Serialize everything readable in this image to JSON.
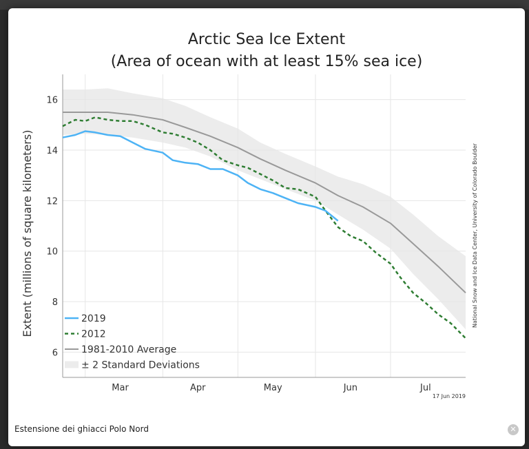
{
  "caption": "Estensione dei ghiacci Polo Nord",
  "close_icon_glyph": "✕",
  "chart_data": {
    "type": "line",
    "title": "Arctic Sea Ice Extent",
    "subtitle": "(Area of ocean with at least 15% sea ice)",
    "ylabel": "Extent (millions of square kilometers)",
    "ylim": [
      5,
      17
    ],
    "yticks": [
      6,
      8,
      10,
      12,
      14,
      16
    ],
    "xlim": [
      "Feb 20",
      "Jul 31"
    ],
    "x_tick_labels": [
      "Mar",
      "Apr",
      "May",
      "Jun",
      "Jul"
    ],
    "grid": true,
    "legend_position": "bottom-left",
    "credit": "National Snow and Ice Data Center, University of Colorado Boulder",
    "date_stamp": "17 Jun 2019",
    "colors": {
      "2019": "#4db3f5",
      "2012": "#2e7d32",
      "average": "#999999",
      "band": "#ececec"
    },
    "series": [
      {
        "name": "2019",
        "x": [
          "Feb 20",
          "Feb 25",
          "Mar 01",
          "Mar 05",
          "Mar 10",
          "Mar 15",
          "Mar 20",
          "Mar 25",
          "Apr 01",
          "Apr 05",
          "Apr 10",
          "Apr 15",
          "Apr 20",
          "Apr 25",
          "May 01",
          "May 05",
          "May 10",
          "May 15",
          "May 20",
          "May 25",
          "Jun 01",
          "Jun 05",
          "Jun 10"
        ],
        "values": [
          14.5,
          14.6,
          14.75,
          14.7,
          14.6,
          14.55,
          14.3,
          14.05,
          13.9,
          13.6,
          13.5,
          13.45,
          13.25,
          13.25,
          13.0,
          12.7,
          12.45,
          12.3,
          12.1,
          11.9,
          11.75,
          11.6,
          11.2
        ]
      },
      {
        "name": "2012",
        "x": [
          "Feb 20",
          "Feb 25",
          "Mar 01",
          "Mar 05",
          "Mar 10",
          "Mar 15",
          "Mar 20",
          "Mar 25",
          "Apr 01",
          "Apr 05",
          "Apr 10",
          "Apr 15",
          "Apr 20",
          "Apr 25",
          "May 01",
          "May 05",
          "May 10",
          "May 15",
          "May 20",
          "May 25",
          "Jun 01",
          "Jun 05",
          "Jun 10",
          "Jun 15",
          "Jun 20",
          "Jun 25",
          "Jul 01",
          "Jul 05",
          "Jul 10",
          "Jul 15",
          "Jul 20",
          "Jul 25",
          "Jul 31"
        ],
        "values": [
          14.95,
          15.2,
          15.15,
          15.3,
          15.2,
          15.15,
          15.15,
          15.0,
          14.7,
          14.65,
          14.5,
          14.3,
          14.0,
          13.6,
          13.4,
          13.3,
          13.05,
          12.8,
          12.5,
          12.45,
          12.15,
          11.6,
          10.95,
          10.6,
          10.4,
          9.95,
          9.5,
          8.95,
          8.35,
          7.95,
          7.5,
          7.15,
          6.55
        ]
      },
      {
        "name": "1981-2010 Average",
        "x": [
          "Feb 20",
          "Mar 01",
          "Mar 10",
          "Mar 20",
          "Apr 01",
          "Apr 10",
          "Apr 20",
          "May 01",
          "May 10",
          "May 20",
          "Jun 01",
          "Jun 10",
          "Jun 20",
          "Jul 01",
          "Jul 10",
          "Jul 20",
          "Jul 31"
        ],
        "values": [
          15.5,
          15.5,
          15.5,
          15.4,
          15.2,
          14.9,
          14.55,
          14.1,
          13.65,
          13.2,
          12.7,
          12.2,
          11.75,
          11.1,
          10.3,
          9.4,
          8.35
        ]
      },
      {
        "name": "± 2 Standard Deviations",
        "x": [
          "Feb 20",
          "Mar 01",
          "Mar 10",
          "Mar 20",
          "Apr 01",
          "Apr 10",
          "Apr 20",
          "May 01",
          "May 10",
          "May 20",
          "Jun 01",
          "Jun 10",
          "Jun 20",
          "Jul 01",
          "Jul 10",
          "Jul 20",
          "Jul 31"
        ],
        "upper": [
          16.4,
          16.4,
          16.45,
          16.25,
          16.05,
          15.75,
          15.3,
          14.85,
          14.3,
          13.85,
          13.35,
          12.95,
          12.65,
          12.15,
          11.45,
          10.6,
          9.8
        ],
        "lower": [
          14.6,
          14.65,
          14.6,
          14.5,
          14.3,
          14.1,
          13.75,
          13.2,
          12.85,
          12.45,
          12.0,
          11.45,
          10.85,
          10.1,
          9.1,
          8.1,
          6.9
        ]
      }
    ]
  }
}
